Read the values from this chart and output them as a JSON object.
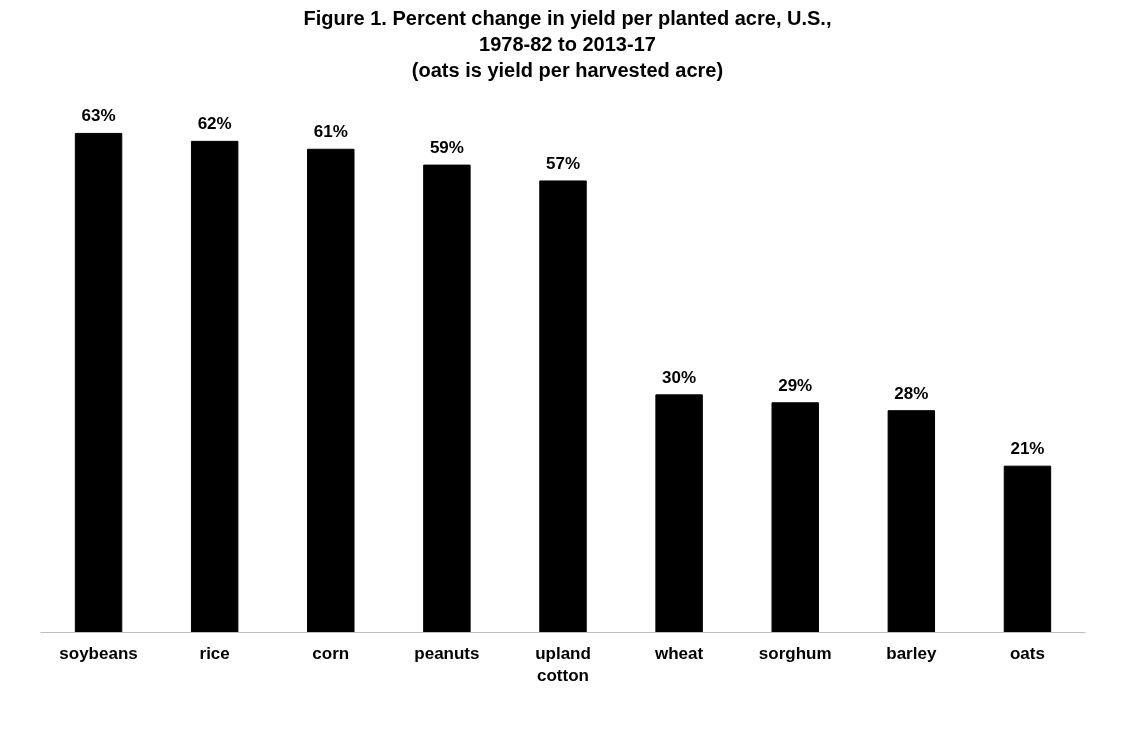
{
  "chart_data": {
    "type": "bar",
    "title": "Figure 1. Percent change in yield per planted acre, U.S.,\n1978-82 to 2013-17\n(oats is yield per harvested acre)",
    "categories": [
      "soybeans",
      "rice",
      "corn",
      "peanuts",
      "upland\ncotton",
      "wheat",
      "sorghum",
      "barley",
      "oats"
    ],
    "values": [
      63,
      62,
      61,
      59,
      57,
      30,
      29,
      28,
      21
    ],
    "value_labels": [
      "63%",
      "62%",
      "61%",
      "59%",
      "57%",
      "30%",
      "29%",
      "28%",
      "21%"
    ],
    "color": "#000000",
    "grid": false,
    "tick_labels": "x"
  }
}
